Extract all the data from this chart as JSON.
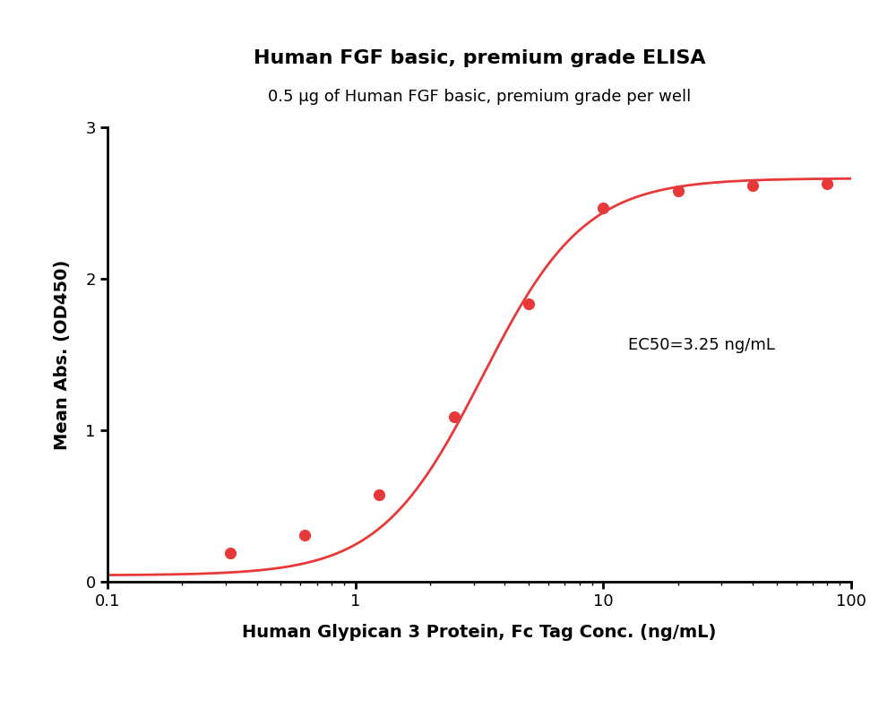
{
  "title": "Human FGF basic, premium grade ELISA",
  "subtitle": "0.5 μg of Human FGF basic, premium grade per well",
  "xlabel": "Human Glypican 3 Protein, Fc Tag Conc. (ng/mL)",
  "ylabel": "Mean Abs. (OD450)",
  "ec50_label": "EC50=3.25 ng/mL",
  "data_x": [
    0.313,
    0.625,
    1.25,
    2.5,
    5.0,
    10.0,
    20.0,
    40.0,
    80.0
  ],
  "data_y": [
    0.185,
    0.305,
    0.575,
    1.09,
    1.835,
    2.47,
    2.58,
    2.615,
    2.63
  ],
  "curve_color": "#E8393A",
  "dot_color": "#E8393A",
  "xlim_log": [
    0.1,
    100
  ],
  "ylim": [
    0,
    3
  ],
  "yticks": [
    0,
    1,
    2,
    3
  ],
  "title_fontsize": 16,
  "subtitle_fontsize": 13,
  "label_fontsize": 14,
  "tick_fontsize": 13,
  "ec50_fontsize": 13,
  "background_color": "#ffffff",
  "4pl_A": 0.04,
  "4pl_B": 2.1,
  "4pl_C": 3.25,
  "4pl_D": 2.665
}
